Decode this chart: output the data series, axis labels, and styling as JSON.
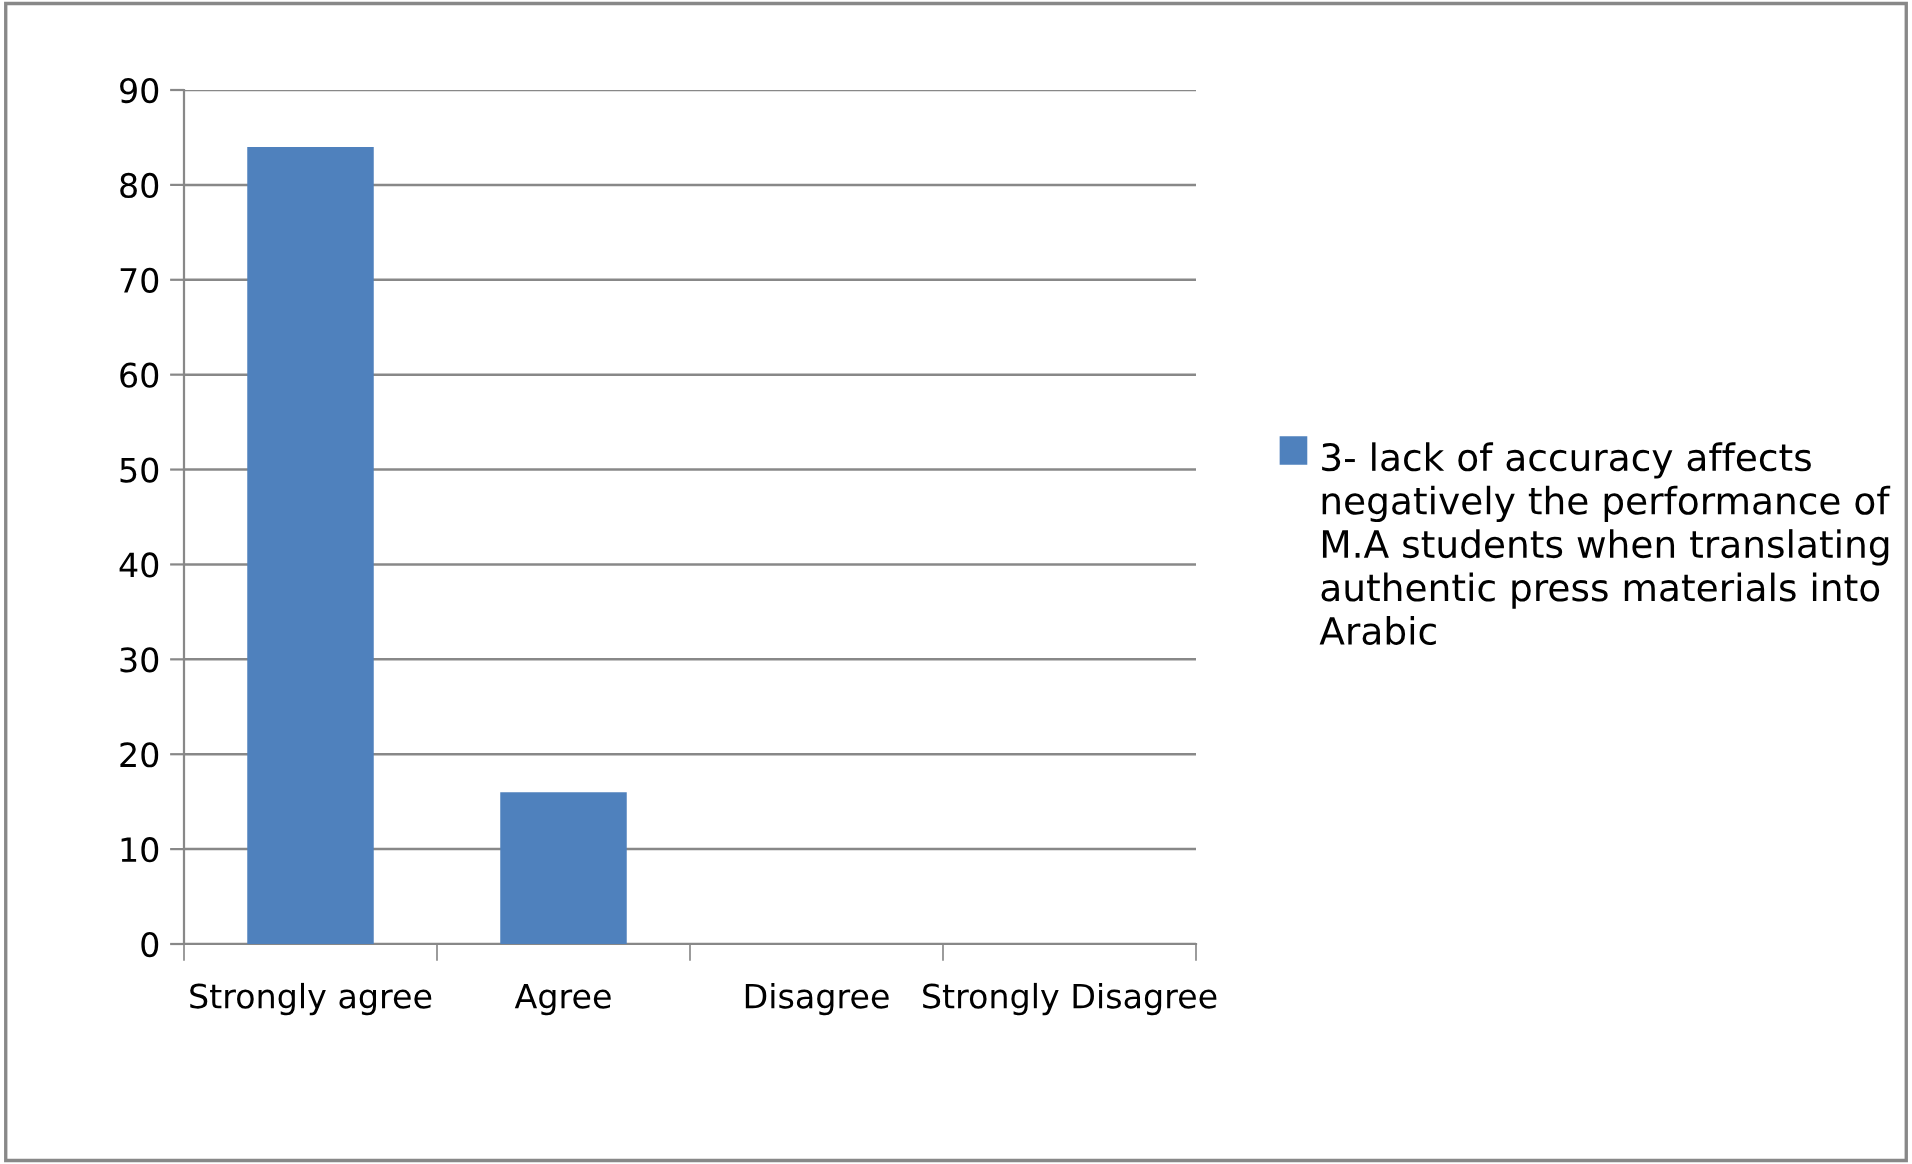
{
  "chart_data": {
    "type": "bar",
    "categories": [
      "Strongly agree",
      "Agree",
      "Disagree",
      "Strongly Disagree"
    ],
    "series": [
      {
        "name": "3- lack of accuracy affects negatively the performance of M.A students when translating authentic press materials into Arabic",
        "color": "#4f81bd",
        "values": [
          84,
          16,
          0,
          0
        ]
      }
    ],
    "ylim": [
      0,
      90
    ],
    "yticks": [
      0,
      10,
      20,
      30,
      40,
      50,
      60,
      70,
      80,
      90
    ],
    "grid": "y",
    "legend": "right"
  }
}
